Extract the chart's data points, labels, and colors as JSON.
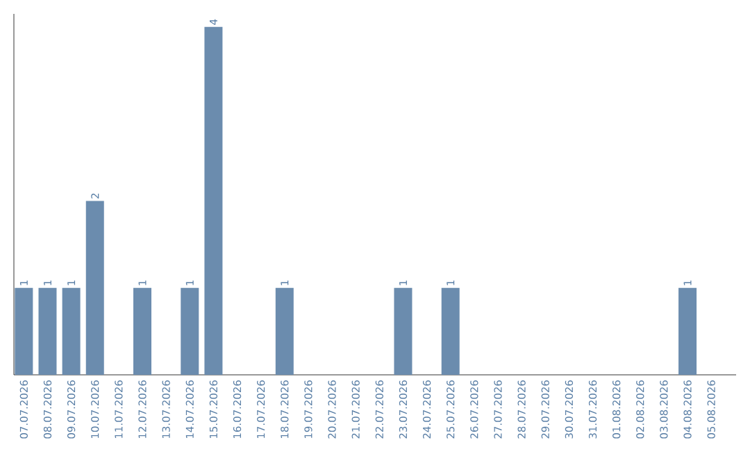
{
  "chart_data": {
    "type": "bar",
    "categories": [
      "07.07.2026",
      "08.07.2026",
      "09.07.2026",
      "10.07.2026",
      "11.07.2026",
      "12.07.2026",
      "13.07.2026",
      "14.07.2026",
      "15.07.2026",
      "16.07.2026",
      "17.07.2026",
      "18.07.2026",
      "19.07.2026",
      "20.07.2026",
      "21.07.2026",
      "22.07.2026",
      "23.07.2026",
      "24.07.2026",
      "25.07.2026",
      "26.07.2026",
      "27.07.2026",
      "28.07.2026",
      "29.07.2026",
      "30.07.2026",
      "31.07.2026",
      "01.08.2026",
      "02.08.2026",
      "03.08.2026",
      "04.08.2026",
      "05.08.2026"
    ],
    "values": [
      1,
      1,
      1,
      2,
      0,
      1,
      0,
      1,
      4,
      0,
      0,
      1,
      0,
      0,
      0,
      0,
      1,
      0,
      1,
      0,
      0,
      0,
      0,
      0,
      0,
      0,
      0,
      0,
      1,
      0
    ],
    "value_labels": [
      "1",
      "1",
      "1",
      "2",
      null,
      "1",
      null,
      "1",
      "4",
      null,
      null,
      "1",
      null,
      null,
      null,
      null,
      "1",
      null,
      "1",
      null,
      null,
      null,
      null,
      null,
      null,
      null,
      null,
      null,
      "1",
      null
    ],
    "color": "#6b8cae",
    "ylim": [
      0,
      4.15
    ],
    "tick_labels": "x"
  }
}
